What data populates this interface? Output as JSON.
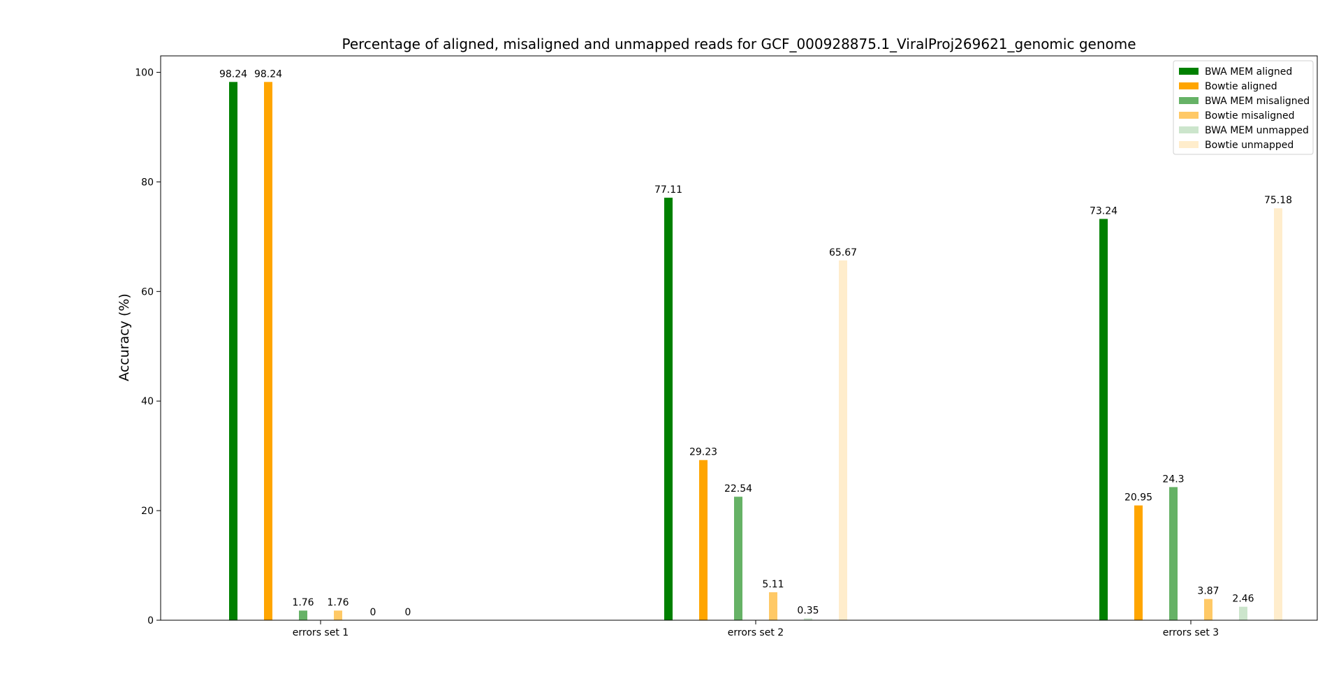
{
  "chart_data": {
    "type": "bar",
    "title": "Percentage of aligned, misaligned and unmapped reads for GCF_000928875.1_ViralProj269621_genomic genome",
    "xlabel": "",
    "ylabel": "Accuracy (%)",
    "ylim": [
      0,
      103
    ],
    "yticks": [
      0,
      20,
      40,
      60,
      80,
      100
    ],
    "grid": false,
    "legend_position": "top-right",
    "categories": [
      "errors set 1",
      "errors set 2",
      "errors set 3"
    ],
    "series": [
      {
        "name": "BWA MEM aligned",
        "color": "#008000",
        "values": [
          98.24,
          77.11,
          73.24
        ]
      },
      {
        "name": "Bowtie aligned",
        "color": "#FFA500",
        "values": [
          98.24,
          29.23,
          20.95
        ]
      },
      {
        "name": "BWA MEM misaligned",
        "color": "#66B266",
        "values": [
          1.76,
          22.54,
          24.3
        ]
      },
      {
        "name": "Bowtie misaligned",
        "color": "#FFC966",
        "values": [
          1.76,
          5.11,
          3.87
        ]
      },
      {
        "name": "BWA MEM unmapped",
        "color": "#CCE5CC",
        "values": [
          0,
          0.35,
          2.46
        ]
      },
      {
        "name": "Bowtie unmapped",
        "color": "#FFEDCC",
        "values": [
          0,
          65.67,
          75.18
        ]
      }
    ]
  }
}
